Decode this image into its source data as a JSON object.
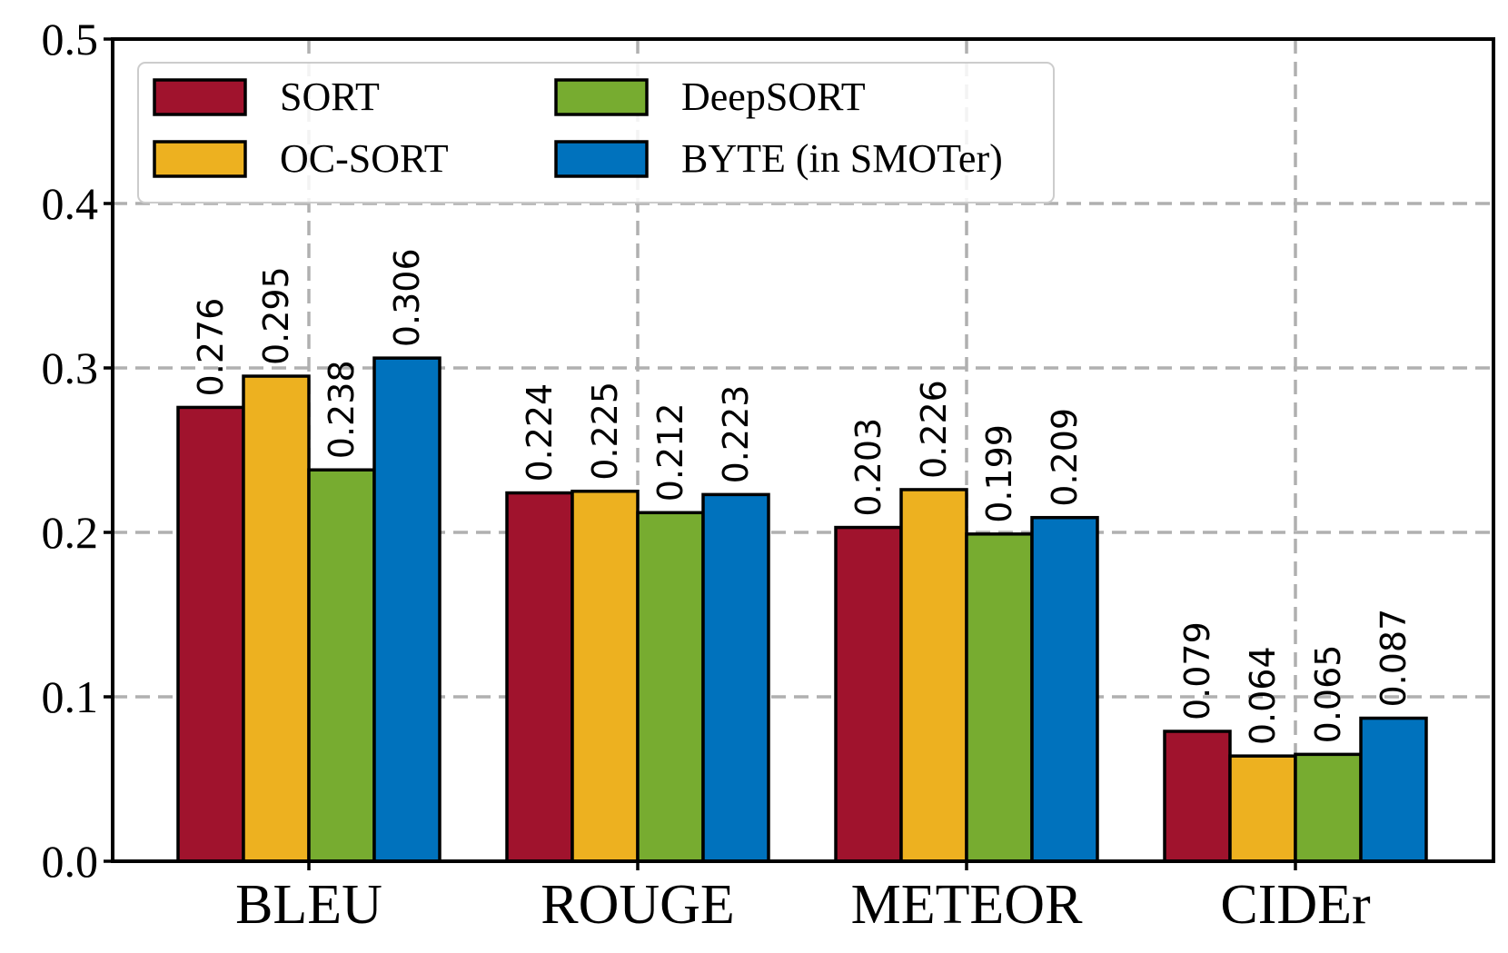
{
  "chart_data": {
    "type": "bar",
    "categories": [
      "BLEU",
      "ROUGE",
      "METEOR",
      "CIDEr"
    ],
    "series": [
      {
        "name": "SORT",
        "color": "#A0132D",
        "values": [
          0.276,
          0.224,
          0.203,
          0.079
        ],
        "labels": [
          "0.276",
          "0.224",
          "0.203",
          "0.079"
        ]
      },
      {
        "name": "OC-SORT",
        "color": "#EDB120",
        "values": [
          0.295,
          0.225,
          0.226,
          0.064
        ],
        "labels": [
          "0.295",
          "0.225",
          "0.226",
          "0.064"
        ]
      },
      {
        "name": "DeepSORT",
        "color": "#77AC30",
        "values": [
          0.238,
          0.212,
          0.199,
          0.065
        ],
        "labels": [
          "0.238",
          "0.212",
          "0.199",
          "0.065"
        ]
      },
      {
        "name": "BYTE (in SMOTer)",
        "color": "#0072BD",
        "values": [
          0.306,
          0.223,
          0.209,
          0.087
        ],
        "labels": [
          "0.306",
          "0.223",
          "0.209",
          "0.087"
        ]
      }
    ],
    "ylim": [
      0.0,
      0.5
    ],
    "yticks": [
      "0.0",
      "0.1",
      "0.2",
      "0.3",
      "0.4",
      "0.5"
    ],
    "ytick_values": [
      0.0,
      0.1,
      0.2,
      0.3,
      0.4,
      0.5
    ],
    "grid": true,
    "legend": "top-left",
    "xlabel": "",
    "ylabel": "",
    "title": ""
  }
}
